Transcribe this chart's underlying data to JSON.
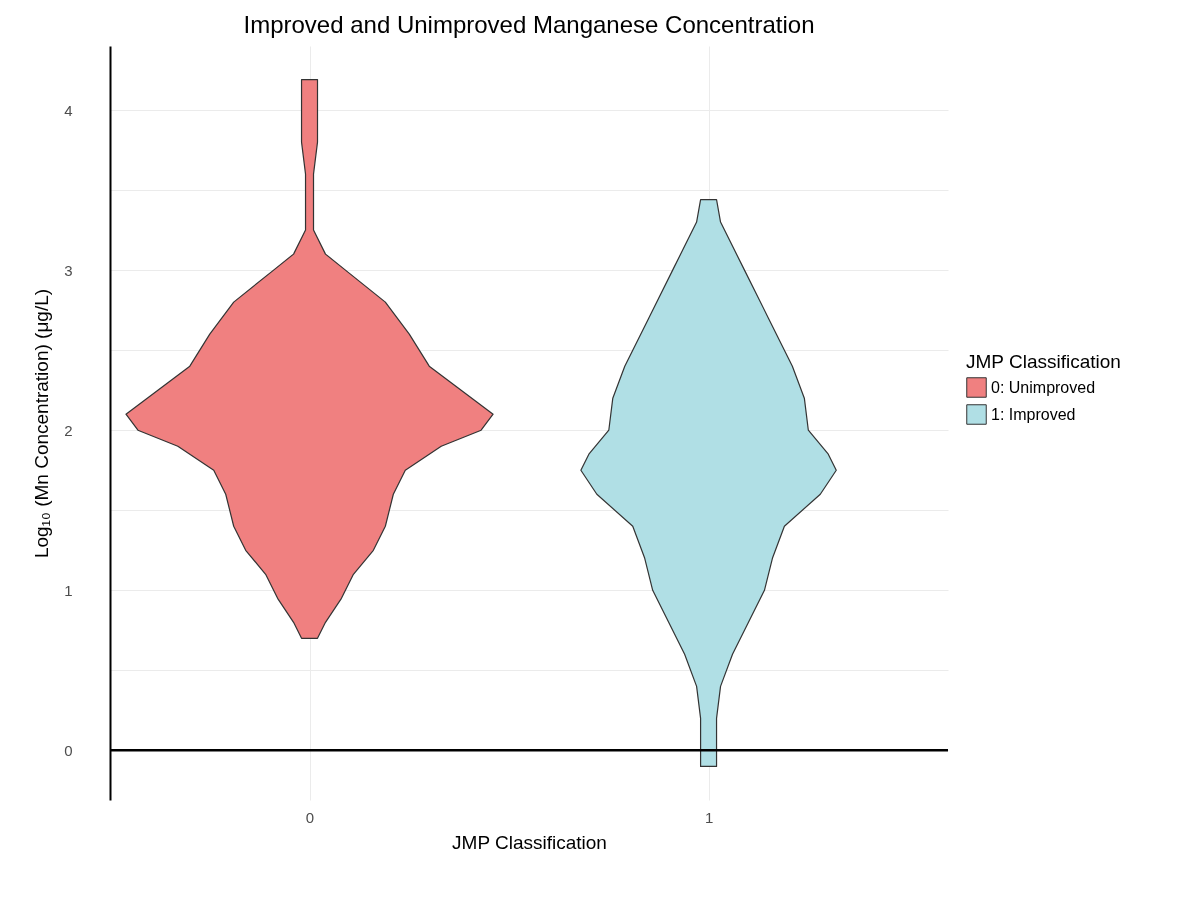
{
  "chart_data": {
    "type": "area",
    "title": "Improved and Unimproved Manganese Concentration",
    "xlabel": "JMP Classification",
    "ylabel": "Log₁₀ (Mn Concentration) (μg/L)",
    "legend_title": "JMP Classification",
    "legend": "right",
    "grid": true,
    "xlim": [
      -0.5,
      1.6
    ],
    "xticks": [
      0,
      1
    ],
    "ylim": [
      -0.31,
      4.4
    ],
    "yticks": [
      0,
      {
        "value": 0.5,
        "label": null
      },
      1,
      {
        "value": 1.5,
        "label": null
      },
      2,
      {
        "value": 2.5,
        "label": null
      },
      3,
      {
        "value": 3.5,
        "label": null
      },
      4
    ],
    "ref_lines": [
      {
        "axis": "y",
        "value": 0,
        "color": "#000000"
      }
    ],
    "series": [
      {
        "name": "0: Unimproved",
        "color": "#f08080",
        "x": [
          0.02,
          0.04,
          0.08,
          0.11,
          0.16,
          0.19,
          0.21,
          0.24,
          0.33,
          0.43,
          0.46,
          0.38,
          0.3,
          0.25,
          0.19,
          0.09,
          0.04,
          0.01,
          0.01,
          0.01,
          0.02,
          0.02,
          0.02,
          -0.02,
          -0.02,
          -0.02,
          -0.01,
          -0.01,
          -0.01,
          -0.04,
          -0.09,
          -0.19,
          -0.25,
          -0.3,
          -0.38,
          -0.46,
          -0.43,
          -0.33,
          -0.24,
          -0.21,
          -0.19,
          -0.16,
          -0.11,
          -0.08,
          -0.04,
          -0.02
        ],
        "values": [
          0.7,
          0.8,
          0.95,
          1.1,
          1.25,
          1.4,
          1.6,
          1.75,
          1.9,
          2.0,
          2.1,
          2.25,
          2.4,
          2.6,
          2.8,
          3.0,
          3.1,
          3.25,
          3.4,
          3.6,
          3.8,
          4.0,
          4.19,
          4.19,
          4.0,
          3.8,
          3.6,
          3.4,
          3.25,
          3.1,
          3.0,
          2.8,
          2.6,
          2.4,
          2.25,
          2.1,
          2.0,
          1.9,
          1.75,
          1.6,
          1.4,
          1.25,
          1.1,
          0.95,
          0.8,
          0.7
        ]
      },
      {
        "name": "1: Improved",
        "color": "#b0dfe5",
        "x": [
          1.02,
          1.02,
          1.03,
          1.06,
          1.1,
          1.14,
          1.16,
          1.19,
          1.28,
          1.32,
          1.3,
          1.25,
          1.24,
          1.21,
          1.15,
          1.09,
          1.03,
          1.02,
          0.98,
          0.97,
          0.91,
          0.85,
          0.79,
          0.76,
          0.75,
          0.7,
          0.68,
          0.72,
          0.81,
          0.84,
          0.86,
          0.9,
          0.94,
          0.97,
          0.98,
          0.98
        ],
        "values": [
          -0.1,
          0.2,
          0.4,
          0.6,
          0.8,
          1.0,
          1.2,
          1.4,
          1.6,
          1.75,
          1.85,
          2.0,
          2.2,
          2.4,
          2.7,
          3.0,
          3.3,
          3.44,
          3.44,
          3.3,
          3.0,
          2.7,
          2.4,
          2.2,
          2.0,
          1.85,
          1.75,
          1.6,
          1.4,
          1.2,
          1.0,
          0.8,
          0.6,
          0.4,
          0.2,
          -0.1
        ]
      }
    ]
  }
}
